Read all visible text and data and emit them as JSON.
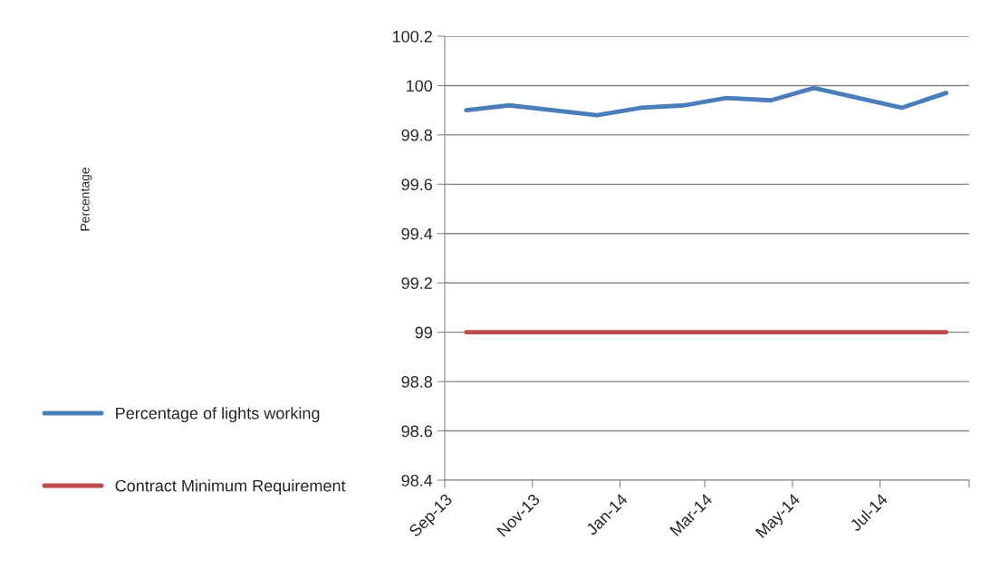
{
  "chart_data": {
    "type": "line",
    "annotations": [
      "Percentage"
    ],
    "x": [
      "2013-09-16",
      "2013-10-16",
      "2013-12-16",
      "2014-01-16",
      "2014-02-15",
      "2014-03-16",
      "2014-04-16",
      "2014-05-16",
      "2014-07-16",
      "2014-08-16"
    ],
    "series": [
      {
        "name": "Percentage of lights working",
        "color": "#4a7ebb",
        "values": [
          99.9,
          99.92,
          99.88,
          99.91,
          99.92,
          99.95,
          99.94,
          99.99,
          99.91,
          99.97
        ]
      },
      {
        "name": "Contract Minimum Requirement",
        "color": "#be4b48",
        "values": [
          99,
          99,
          99,
          99,
          99,
          99,
          99,
          99,
          99,
          99
        ]
      }
    ],
    "xlim": [
      "2013-09-01",
      "2014-09-01"
    ],
    "xticks": [
      {
        "value": "2013-09-01",
        "label": "Sep-13"
      },
      {
        "value": "2013-11-01",
        "label": "Nov-13"
      },
      {
        "value": "2014-01-01",
        "label": "Jan-14"
      },
      {
        "value": "2014-03-01",
        "label": "Mar-14"
      },
      {
        "value": "2014-05-01",
        "label": "May-14"
      },
      {
        "value": "2014-07-01",
        "label": "Jul-14"
      },
      {
        "value": "2014-09-01",
        "label": null
      }
    ],
    "ylim": [
      98.4,
      100.2
    ],
    "yticks": [
      98.4,
      98.6,
      98.8,
      99,
      99.2,
      99.4,
      99.6,
      99.8,
      100,
      100.2
    ],
    "grid": "y",
    "legend": "left",
    "marker": "none",
    "line_style": "solid"
  }
}
